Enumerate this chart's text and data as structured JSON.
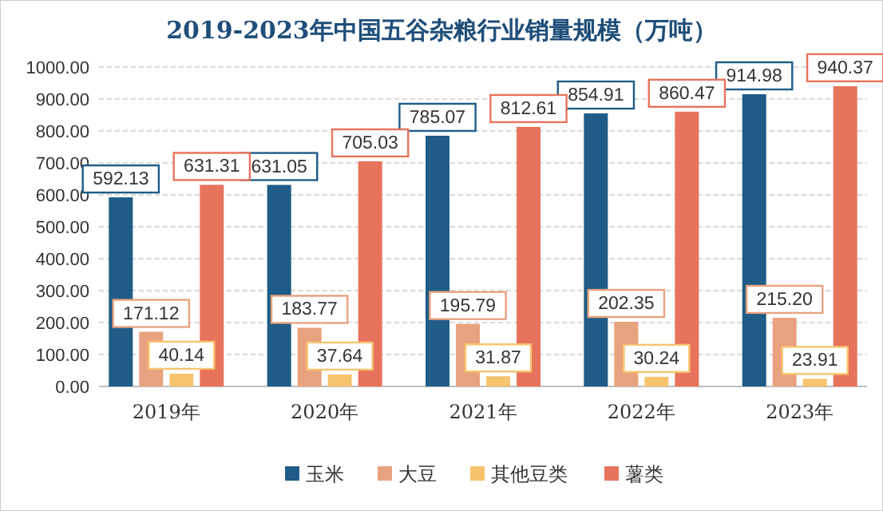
{
  "chart_data": {
    "type": "bar",
    "title": "2019-2023年中国五谷杂粮行业销量规模（万吨）",
    "categories": [
      "2019年",
      "2020年",
      "2021年",
      "2022年",
      "2023年"
    ],
    "series": [
      {
        "name": "玉米",
        "color": "#1f5c87",
        "values": [
          592.13,
          631.05,
          785.07,
          854.91,
          914.98
        ],
        "value_labels": [
          "592.13",
          "631.05",
          "785.07",
          "854.91",
          "914.98"
        ]
      },
      {
        "name": "大豆",
        "color": "#e9a27f",
        "values": [
          171.12,
          183.77,
          195.79,
          202.35,
          215.2
        ],
        "value_labels": [
          "171.12",
          "183.77",
          "195.79",
          "202.35",
          "215.20"
        ]
      },
      {
        "name": "其他豆类",
        "color": "#f6c46e",
        "values": [
          40.14,
          37.64,
          31.87,
          30.24,
          23.91
        ],
        "value_labels": [
          "40.14",
          "37.64",
          "31.87",
          "30.24",
          "23.91"
        ]
      },
      {
        "name": "薯类",
        "color": "#e8735c",
        "values": [
          631.31,
          705.03,
          812.61,
          860.47,
          940.37
        ],
        "value_labels": [
          "631.31",
          "705.03",
          "812.61",
          "860.47",
          "940.37"
        ]
      }
    ],
    "ylim": [
      0,
      1000
    ],
    "yticks": [
      {
        "value": 0,
        "label": "0.00"
      },
      {
        "value": 100,
        "label": "100.00"
      },
      {
        "value": 200,
        "label": "200.00"
      },
      {
        "value": 300,
        "label": "300.00"
      },
      {
        "value": 400,
        "label": "400.00"
      },
      {
        "value": 500,
        "label": "500.00"
      },
      {
        "value": 600,
        "label": "600.00"
      },
      {
        "value": 700,
        "label": "700.00"
      },
      {
        "value": 800,
        "label": "800.00"
      },
      {
        "value": 900,
        "label": "900.00"
      },
      {
        "value": 1000,
        "label": "1000.00"
      }
    ],
    "grid": "y",
    "legend": "bottom"
  }
}
